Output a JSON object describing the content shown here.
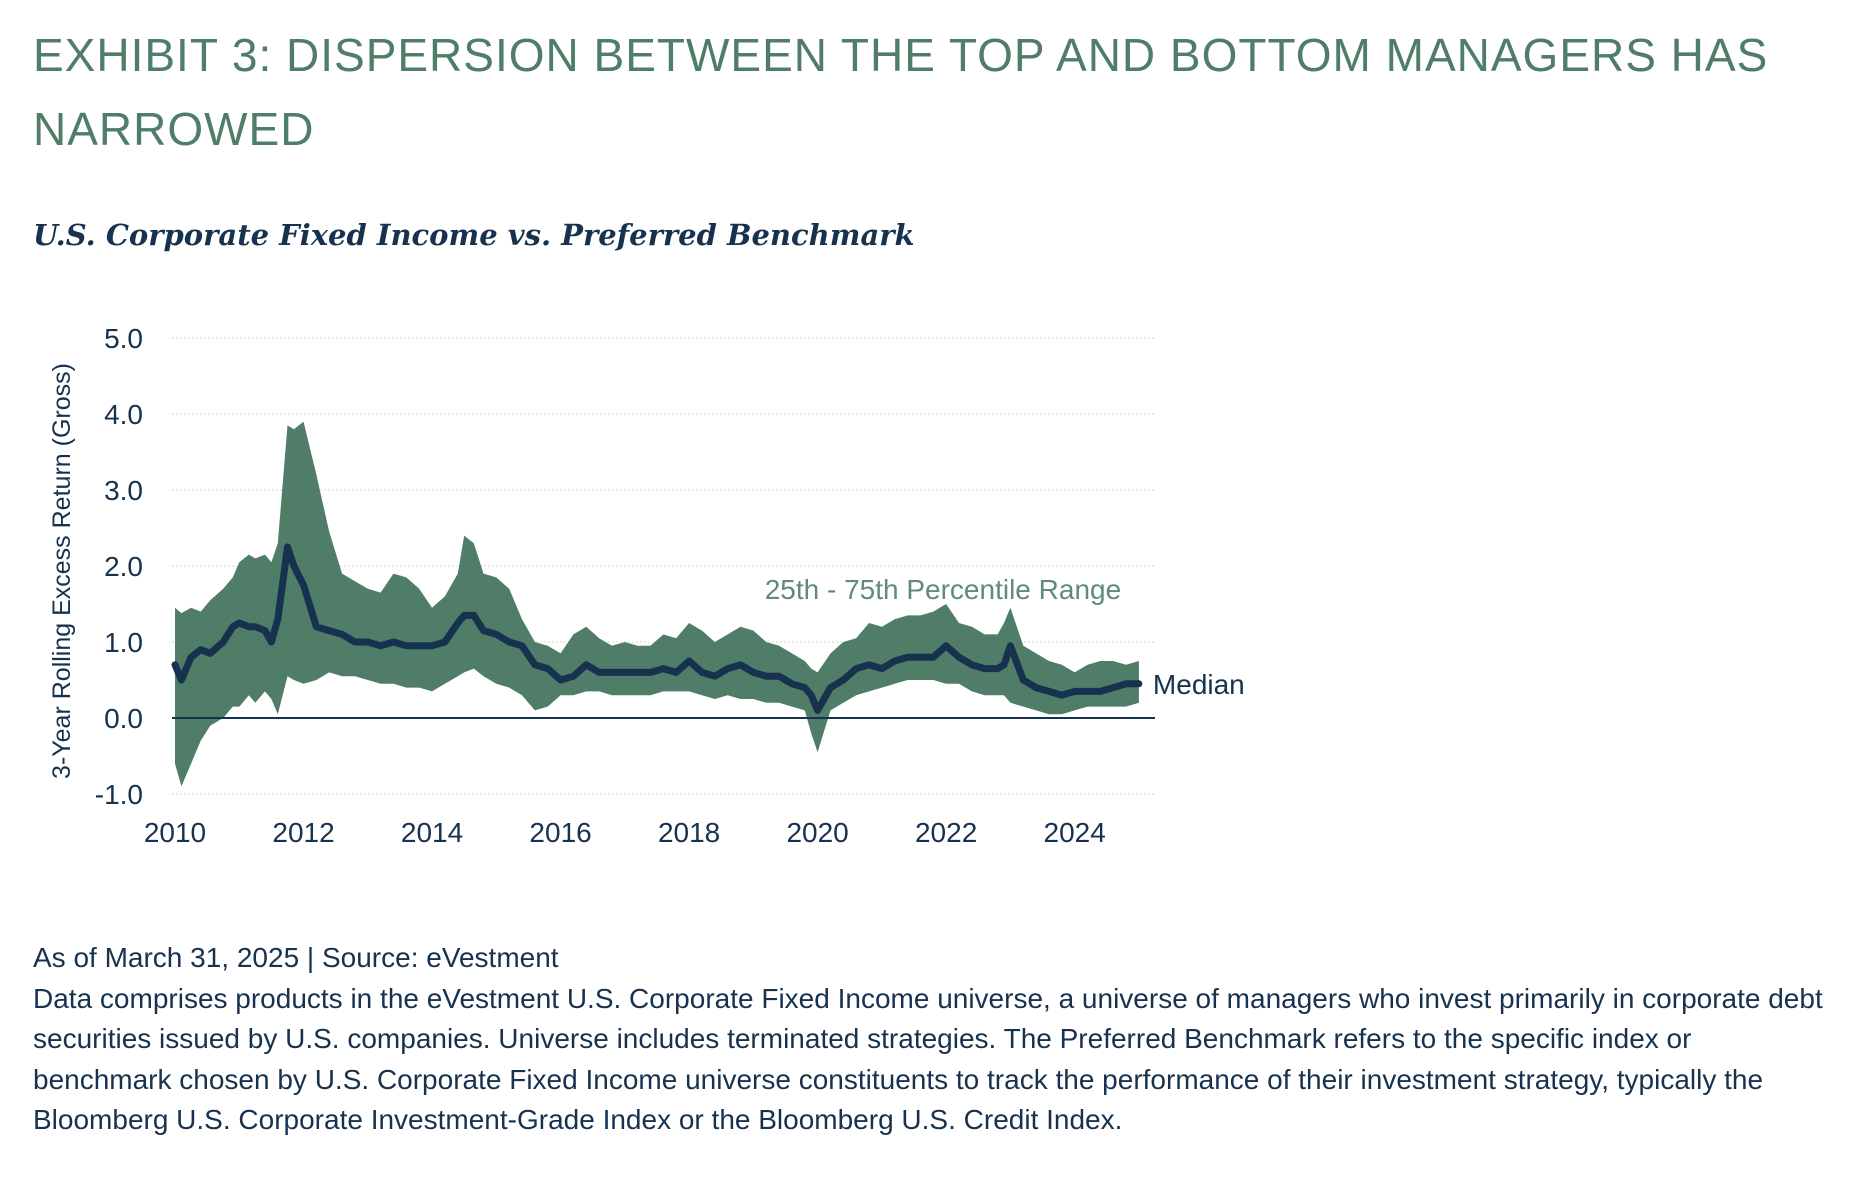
{
  "header": {
    "title": "EXHIBIT 3: DISPERSION BETWEEN THE TOP AND BOTTOM MANAGERS HAS NARROWED",
    "subtitle": "U.S. Corporate Fixed Income vs. Preferred Benchmark"
  },
  "footer": {
    "source_line": "As of March 31, 2025 | Source: eVestment",
    "description": "Data comprises products in the eVestment U.S. Corporate Fixed Income universe, a universe of managers who invest primarily in corporate debt securities issued by U.S. companies. Universe includes terminated strategies. The Preferred Benchmark refers to the specific index or benchmark chosen by U.S. Corporate Fixed Income universe constituents to track the performance of their investment strategy, typically the Bloomberg U.S. Corporate Investment-Grade Index or the Bloomberg U.S. Credit Index."
  },
  "chart_data": {
    "type": "area",
    "ylabel": "3-Year Rolling Excess Return (Gross)",
    "xlabel": "",
    "xlim": [
      2010,
      2025.25
    ],
    "ylim": [
      -1.0,
      5.0
    ],
    "x_ticks": [
      2010,
      2012,
      2014,
      2016,
      2018,
      2020,
      2022,
      2024
    ],
    "y_ticks": [
      5.0,
      4.0,
      3.0,
      2.0,
      1.0,
      0.0,
      -1.0
    ],
    "grid": true,
    "colors": {
      "band": "#4f7d67",
      "median": "#17324f",
      "zero_line": "#17324f",
      "grid": "#d6d6d6",
      "band_label": "#5e8c76"
    },
    "series": [
      {
        "name": "25th - 75th Percentile Range",
        "type": "band",
        "x": [
          2010.0,
          2010.1,
          2010.25,
          2010.4,
          2010.55,
          2010.75,
          2010.9,
          2011.0,
          2011.15,
          2011.25,
          2011.4,
          2011.5,
          2011.6,
          2011.75,
          2011.85,
          2012.0,
          2012.2,
          2012.4,
          2012.6,
          2012.8,
          2013.0,
          2013.2,
          2013.4,
          2013.6,
          2013.8,
          2014.0,
          2014.2,
          2014.4,
          2014.5,
          2014.65,
          2014.8,
          2015.0,
          2015.2,
          2015.4,
          2015.6,
          2015.8,
          2016.0,
          2016.2,
          2016.4,
          2016.6,
          2016.8,
          2017.0,
          2017.2,
          2017.4,
          2017.6,
          2017.8,
          2018.0,
          2018.2,
          2018.4,
          2018.6,
          2018.8,
          2019.0,
          2019.2,
          2019.4,
          2019.6,
          2019.8,
          2019.9,
          2020.0,
          2020.2,
          2020.4,
          2020.6,
          2020.8,
          2021.0,
          2021.2,
          2021.4,
          2021.6,
          2021.8,
          2022.0,
          2022.2,
          2022.4,
          2022.6,
          2022.8,
          2022.9,
          2023.0,
          2023.2,
          2023.4,
          2023.6,
          2023.8,
          2024.0,
          2024.2,
          2024.4,
          2024.6,
          2024.8,
          2025.0
        ],
        "upper": [
          1.45,
          1.38,
          1.45,
          1.4,
          1.55,
          1.7,
          1.85,
          2.05,
          2.15,
          2.1,
          2.15,
          2.05,
          2.3,
          3.85,
          3.8,
          3.9,
          3.2,
          2.45,
          1.9,
          1.8,
          1.7,
          1.65,
          1.9,
          1.85,
          1.7,
          1.45,
          1.6,
          1.9,
          2.4,
          2.3,
          1.9,
          1.85,
          1.7,
          1.3,
          1.0,
          0.95,
          0.85,
          1.1,
          1.2,
          1.05,
          0.95,
          1.0,
          0.95,
          0.95,
          1.1,
          1.05,
          1.25,
          1.15,
          1.0,
          1.1,
          1.2,
          1.15,
          1.0,
          0.95,
          0.85,
          0.75,
          0.65,
          0.6,
          0.85,
          1.0,
          1.05,
          1.25,
          1.2,
          1.3,
          1.35,
          1.35,
          1.4,
          1.5,
          1.25,
          1.2,
          1.1,
          1.1,
          1.25,
          1.45,
          0.95,
          0.85,
          0.75,
          0.7,
          0.6,
          0.7,
          0.75,
          0.75,
          0.7,
          0.75
        ],
        "lower": [
          -0.6,
          -0.9,
          -0.6,
          -0.3,
          -0.1,
          0.0,
          0.15,
          0.15,
          0.3,
          0.2,
          0.35,
          0.25,
          0.05,
          0.55,
          0.5,
          0.45,
          0.5,
          0.6,
          0.55,
          0.55,
          0.5,
          0.45,
          0.45,
          0.4,
          0.4,
          0.35,
          0.45,
          0.55,
          0.6,
          0.65,
          0.55,
          0.45,
          0.4,
          0.3,
          0.1,
          0.15,
          0.3,
          0.3,
          0.35,
          0.35,
          0.3,
          0.3,
          0.3,
          0.3,
          0.35,
          0.35,
          0.35,
          0.3,
          0.25,
          0.3,
          0.25,
          0.25,
          0.2,
          0.2,
          0.15,
          0.1,
          -0.2,
          -0.45,
          0.1,
          0.2,
          0.3,
          0.35,
          0.4,
          0.45,
          0.5,
          0.5,
          0.5,
          0.45,
          0.45,
          0.35,
          0.3,
          0.3,
          0.3,
          0.2,
          0.15,
          0.1,
          0.05,
          0.05,
          0.1,
          0.15,
          0.15,
          0.15,
          0.15,
          0.2
        ]
      },
      {
        "name": "Median",
        "type": "line",
        "x": [
          2010.0,
          2010.1,
          2010.25,
          2010.4,
          2010.55,
          2010.75,
          2010.9,
          2011.0,
          2011.15,
          2011.25,
          2011.4,
          2011.5,
          2011.6,
          2011.75,
          2011.85,
          2012.0,
          2012.2,
          2012.4,
          2012.6,
          2012.8,
          2013.0,
          2013.2,
          2013.4,
          2013.6,
          2013.8,
          2014.0,
          2014.2,
          2014.4,
          2014.5,
          2014.65,
          2014.8,
          2015.0,
          2015.2,
          2015.4,
          2015.6,
          2015.8,
          2016.0,
          2016.2,
          2016.4,
          2016.6,
          2016.8,
          2017.0,
          2017.2,
          2017.4,
          2017.6,
          2017.8,
          2018.0,
          2018.2,
          2018.4,
          2018.6,
          2018.8,
          2019.0,
          2019.2,
          2019.4,
          2019.6,
          2019.8,
          2019.9,
          2020.0,
          2020.2,
          2020.4,
          2020.6,
          2020.8,
          2021.0,
          2021.2,
          2021.4,
          2021.6,
          2021.8,
          2022.0,
          2022.2,
          2022.4,
          2022.6,
          2022.8,
          2022.9,
          2023.0,
          2023.2,
          2023.4,
          2023.6,
          2023.8,
          2024.0,
          2024.2,
          2024.4,
          2024.6,
          2024.8,
          2025.0
        ],
        "values": [
          0.7,
          0.5,
          0.8,
          0.9,
          0.85,
          1.0,
          1.2,
          1.25,
          1.2,
          1.2,
          1.15,
          1.0,
          1.3,
          2.25,
          2.0,
          1.75,
          1.2,
          1.15,
          1.1,
          1.0,
          1.0,
          0.95,
          1.0,
          0.95,
          0.95,
          0.95,
          1.0,
          1.25,
          1.35,
          1.35,
          1.15,
          1.1,
          1.0,
          0.95,
          0.7,
          0.65,
          0.5,
          0.55,
          0.7,
          0.6,
          0.6,
          0.6,
          0.6,
          0.6,
          0.65,
          0.6,
          0.75,
          0.6,
          0.55,
          0.65,
          0.7,
          0.6,
          0.55,
          0.55,
          0.45,
          0.4,
          0.3,
          0.1,
          0.4,
          0.5,
          0.65,
          0.7,
          0.65,
          0.75,
          0.8,
          0.8,
          0.8,
          0.95,
          0.8,
          0.7,
          0.65,
          0.65,
          0.7,
          0.95,
          0.5,
          0.4,
          0.35,
          0.3,
          0.35,
          0.35,
          0.35,
          0.4,
          0.45,
          0.45
        ]
      }
    ],
    "annotations": [
      {
        "text": "25th - 75th Percentile Range",
        "x": 2021.95,
        "y": 1.7
      },
      {
        "text": "Median",
        "series": "Median",
        "position": "line-end"
      }
    ]
  }
}
